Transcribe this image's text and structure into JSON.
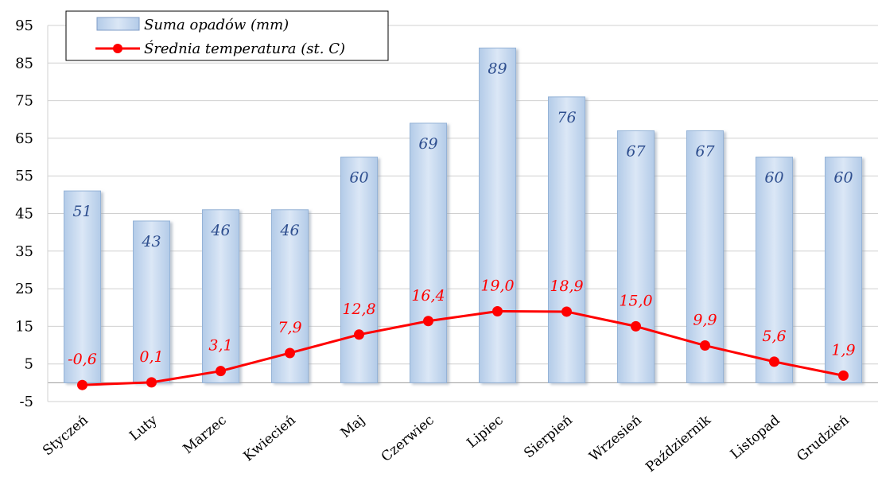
{
  "chart_data": {
    "type": "bar",
    "categories": [
      "Styczeń",
      "Luty",
      "Marzec",
      "Kwiecień",
      "Maj",
      "Czerwiec",
      "Lipiec",
      "Sierpień",
      "Wrzesień",
      "Październik",
      "Listopad",
      "Grudzień"
    ],
    "series": [
      {
        "name": "Suma opadów (mm)",
        "type": "bar",
        "values": [
          51,
          43,
          46,
          46,
          60,
          69,
          89,
          76,
          67,
          67,
          60,
          60
        ],
        "labels": [
          "51",
          "43",
          "46",
          "46",
          "60",
          "69",
          "89",
          "76",
          "67",
          "67",
          "60",
          "60"
        ],
        "color": "#c6d9f1"
      },
      {
        "name": "Średnia temperatura (st. C)",
        "type": "line",
        "values": [
          -0.6,
          0.1,
          3.1,
          7.9,
          12.8,
          16.4,
          19.0,
          18.9,
          15.0,
          9.9,
          5.6,
          1.9
        ],
        "labels": [
          "-0,6",
          "0,1",
          "3,1",
          "7,9",
          "12,8",
          "16,4",
          "19,0",
          "18,9",
          "15,0",
          "9,9",
          "5,6",
          "1,9"
        ],
        "color": "#ff0000"
      }
    ],
    "yticks": [
      "-5",
      "5",
      "15",
      "25",
      "35",
      "45",
      "55",
      "65",
      "75",
      "85",
      "95"
    ],
    "ylim": [
      -5,
      95
    ],
    "grid": true,
    "legend_position": "top-left"
  }
}
